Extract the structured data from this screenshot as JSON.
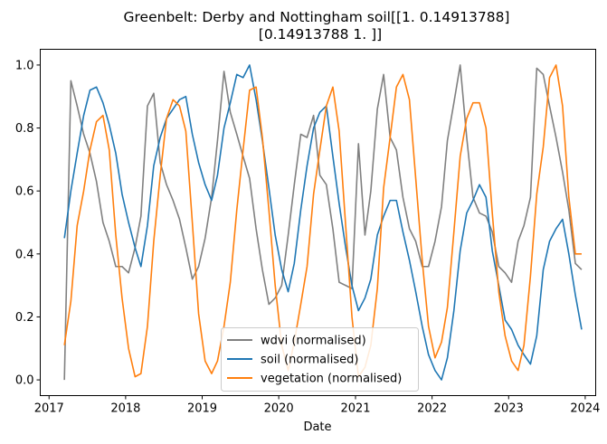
{
  "chart_data": {
    "type": "line",
    "title": "Greenbelt: Derby and Nottingham soil[[1.         0.14913788]",
    "title_line2": "[0.14913788 1.        ]]",
    "xlabel": "Date",
    "ylabel": "",
    "xlim": [
      "2016-11-20",
      "2024-02-20"
    ],
    "ylim": [
      -0.05,
      1.05
    ],
    "x_ticks": [
      "2017",
      "2018",
      "2019",
      "2020",
      "2021",
      "2022",
      "2023",
      "2024"
    ],
    "y_ticks": [
      "0.0",
      "0.2",
      "0.4",
      "0.6",
      "0.8",
      "1.0"
    ],
    "grid": false,
    "legend_position": "bottom-center",
    "x": [
      "2017-03",
      "2017-04",
      "2017-05",
      "2017-06",
      "2017-07",
      "2017-08",
      "2017-09",
      "2017-10",
      "2017-11",
      "2017-12",
      "2018-01",
      "2018-02",
      "2018-03",
      "2018-04",
      "2018-05",
      "2018-06",
      "2018-07",
      "2018-08",
      "2018-09",
      "2018-10",
      "2018-11",
      "2018-12",
      "2019-01",
      "2019-02",
      "2019-03",
      "2019-04",
      "2019-05",
      "2019-06",
      "2019-07",
      "2019-08",
      "2019-09",
      "2019-10",
      "2019-11",
      "2019-12",
      "2020-01",
      "2020-02",
      "2020-03",
      "2020-04",
      "2020-05",
      "2020-06",
      "2020-07",
      "2020-08",
      "2020-09",
      "2020-10",
      "2020-11",
      "2020-12",
      "2021-01",
      "2021-02",
      "2021-03",
      "2021-04",
      "2021-05",
      "2021-06",
      "2021-07",
      "2021-08",
      "2021-09",
      "2021-10",
      "2021-11",
      "2021-12",
      "2022-01",
      "2022-02",
      "2022-03",
      "2022-04",
      "2022-05",
      "2022-06",
      "2022-07",
      "2022-08",
      "2022-09",
      "2022-10",
      "2022-11",
      "2022-12",
      "2023-01",
      "2023-02",
      "2023-03",
      "2023-04",
      "2023-05",
      "2023-06",
      "2023-07",
      "2023-08",
      "2023-09",
      "2023-10",
      "2023-11",
      "2023-12"
    ],
    "series": [
      {
        "name": "wdvi (normalised)",
        "color": "#808080",
        "values": [
          0.0,
          0.95,
          0.87,
          0.78,
          0.72,
          0.63,
          0.5,
          0.44,
          0.36,
          0.36,
          0.34,
          0.42,
          0.52,
          0.87,
          0.91,
          0.69,
          0.62,
          0.57,
          0.51,
          0.42,
          0.32,
          0.36,
          0.45,
          0.58,
          0.76,
          0.98,
          0.85,
          0.78,
          0.71,
          0.64,
          0.48,
          0.35,
          0.24,
          0.26,
          0.3,
          0.46,
          0.62,
          0.78,
          0.77,
          0.84,
          0.65,
          0.62,
          0.48,
          0.31,
          0.3,
          0.29,
          0.75,
          0.46,
          0.6,
          0.86,
          0.97,
          0.77,
          0.73,
          0.58,
          0.48,
          0.44,
          0.36,
          0.36,
          0.44,
          0.55,
          0.76,
          0.88,
          1.0,
          0.77,
          0.58,
          0.53,
          0.52,
          0.47,
          0.36,
          0.34,
          0.31,
          0.44,
          0.49,
          0.58,
          0.99,
          0.97,
          0.87,
          0.77,
          0.66,
          0.54,
          0.37,
          0.35
        ]
      },
      {
        "name": "soil (normalised)",
        "color": "#1f77b4",
        "values": [
          0.45,
          0.6,
          0.72,
          0.84,
          0.92,
          0.93,
          0.88,
          0.81,
          0.72,
          0.59,
          0.5,
          0.42,
          0.36,
          0.49,
          0.68,
          0.77,
          0.83,
          0.86,
          0.89,
          0.9,
          0.78,
          0.69,
          0.62,
          0.57,
          0.65,
          0.8,
          0.88,
          0.97,
          0.96,
          1.0,
          0.89,
          0.76,
          0.61,
          0.46,
          0.35,
          0.28,
          0.37,
          0.54,
          0.68,
          0.8,
          0.85,
          0.87,
          0.71,
          0.56,
          0.42,
          0.3,
          0.22,
          0.26,
          0.32,
          0.46,
          0.52,
          0.57,
          0.57,
          0.47,
          0.38,
          0.28,
          0.17,
          0.08,
          0.03,
          0.0,
          0.07,
          0.22,
          0.41,
          0.53,
          0.57,
          0.62,
          0.58,
          0.41,
          0.3,
          0.19,
          0.16,
          0.11,
          0.08,
          0.05,
          0.14,
          0.35,
          0.44,
          0.48,
          0.51,
          0.4,
          0.27,
          0.16
        ]
      },
      {
        "name": "vegetation (normalised)",
        "color": "#ff7f0e",
        "values": [
          0.11,
          0.25,
          0.49,
          0.6,
          0.73,
          0.82,
          0.84,
          0.73,
          0.46,
          0.26,
          0.1,
          0.01,
          0.02,
          0.17,
          0.44,
          0.65,
          0.83,
          0.89,
          0.87,
          0.79,
          0.5,
          0.21,
          0.06,
          0.02,
          0.06,
          0.17,
          0.31,
          0.54,
          0.73,
          0.92,
          0.93,
          0.77,
          0.54,
          0.3,
          0.11,
          0.03,
          0.12,
          0.24,
          0.36,
          0.59,
          0.73,
          0.87,
          0.93,
          0.79,
          0.49,
          0.2,
          0.01,
          0.04,
          0.11,
          0.29,
          0.61,
          0.77,
          0.93,
          0.97,
          0.89,
          0.64,
          0.38,
          0.17,
          0.07,
          0.12,
          0.23,
          0.47,
          0.71,
          0.83,
          0.88,
          0.88,
          0.8,
          0.53,
          0.28,
          0.14,
          0.06,
          0.03,
          0.11,
          0.33,
          0.59,
          0.74,
          0.96,
          1.0,
          0.87,
          0.58,
          0.4,
          0.4
        ]
      }
    ]
  }
}
